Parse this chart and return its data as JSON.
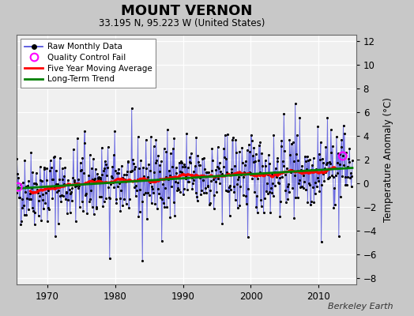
{
  "title": "MOUNT VERNON",
  "subtitle": "33.195 N, 95.223 W (United States)",
  "ylabel": "Temperature Anomaly (°C)",
  "credit": "Berkeley Earth",
  "xlim": [
    1965.5,
    2015.5
  ],
  "ylim": [
    -8.5,
    12.5
  ],
  "yticks": [
    -8,
    -6,
    -4,
    -2,
    0,
    2,
    4,
    6,
    8,
    10,
    12
  ],
  "xticks": [
    1970,
    1980,
    1990,
    2000,
    2010
  ],
  "bg_color": "#c8c8c8",
  "plot_bg_color": "#f0f0f0",
  "grid_color": "white",
  "raw_line_color": "#5555dd",
  "raw_dot_color": "black",
  "moving_avg_color": "red",
  "trend_color": "green",
  "qc_fail_color": "magenta",
  "start_year": 1965,
  "end_year": 2014,
  "seed": 42
}
